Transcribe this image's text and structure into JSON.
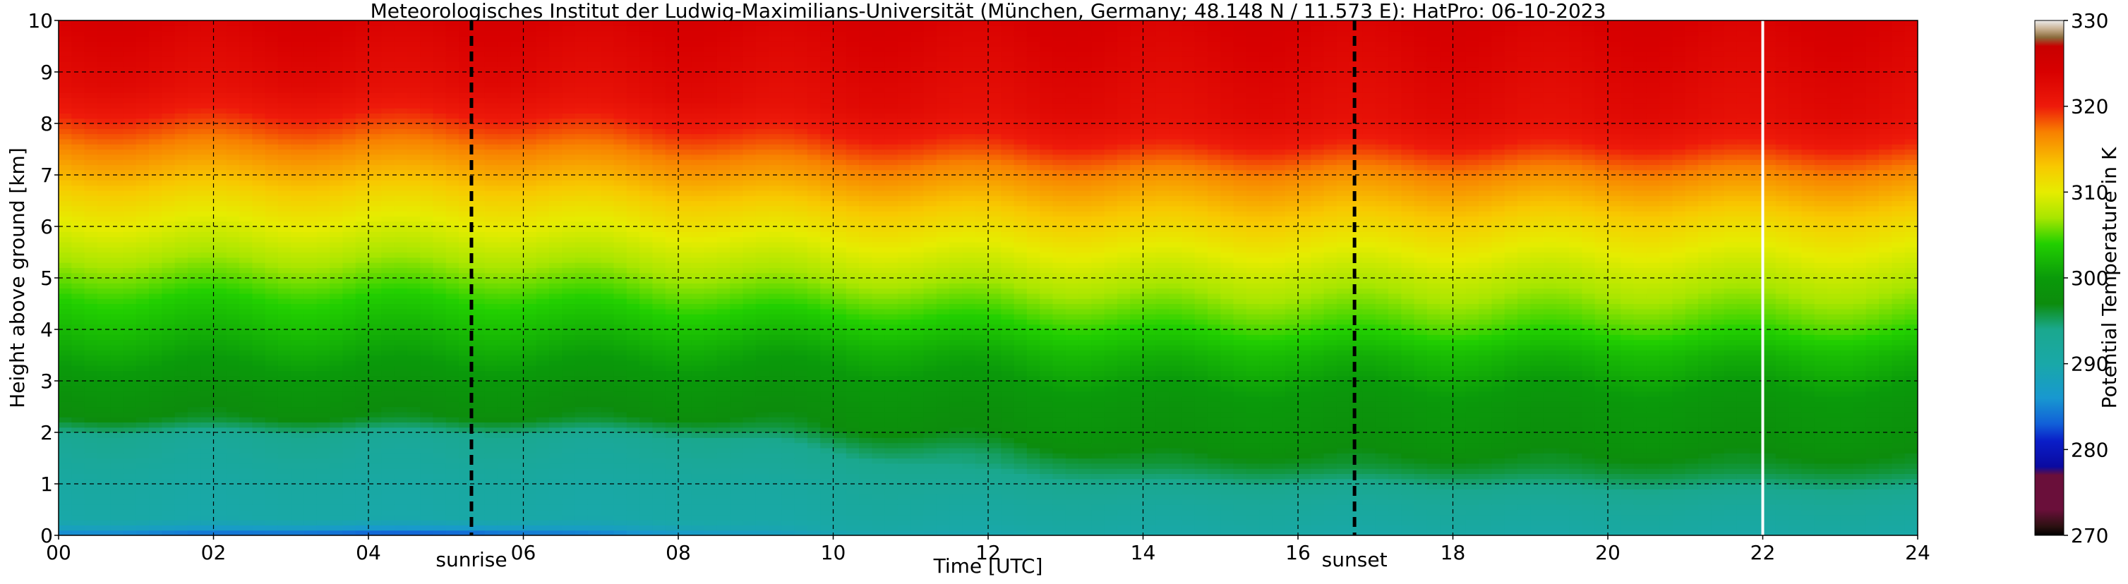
{
  "chart_data": {
    "type": "heatmap",
    "title": "Meteorologisches Institut der Ludwig-Maximilians-Universität (München, Germany; 48.148 N / 11.573 E):    HatPro: 06-10-2023",
    "xlabel": "Time [UTC]",
    "ylabel": "Height above ground [km]",
    "xlim": [
      0,
      24
    ],
    "ylim": [
      0,
      10
    ],
    "x_ticks": [
      {
        "value": 0,
        "label": "00"
      },
      {
        "value": 2,
        "label": "02"
      },
      {
        "value": 4,
        "label": "04"
      },
      {
        "value": 6,
        "label": "06"
      },
      {
        "value": 8,
        "label": "08"
      },
      {
        "value": 10,
        "label": "10"
      },
      {
        "value": 12,
        "label": "12"
      },
      {
        "value": 14,
        "label": "14"
      },
      {
        "value": 16,
        "label": "16"
      },
      {
        "value": 18,
        "label": "18"
      },
      {
        "value": 20,
        "label": "20"
      },
      {
        "value": 22,
        "label": "22"
      },
      {
        "value": 24,
        "label": "24"
      }
    ],
    "y_ticks": [
      {
        "value": 0,
        "label": "0"
      },
      {
        "value": 1,
        "label": "1"
      },
      {
        "value": 2,
        "label": "2"
      },
      {
        "value": 3,
        "label": "3"
      },
      {
        "value": 4,
        "label": "4"
      },
      {
        "value": 5,
        "label": "5"
      },
      {
        "value": 6,
        "label": "6"
      },
      {
        "value": 7,
        "label": "7"
      },
      {
        "value": 8,
        "label": "8"
      },
      {
        "value": 9,
        "label": "9"
      },
      {
        "value": 10,
        "label": "10"
      }
    ],
    "grid": true,
    "colorbar": {
      "label": "Potential Temperature in K",
      "range": [
        270,
        330
      ],
      "ticks": [
        {
          "value": 270,
          "label": "270"
        },
        {
          "value": 280,
          "label": "280"
        },
        {
          "value": 290,
          "label": "290"
        },
        {
          "value": 300,
          "label": "300"
        },
        {
          "value": 310,
          "label": "310"
        },
        {
          "value": 320,
          "label": "320"
        },
        {
          "value": 330,
          "label": "330"
        }
      ],
      "stops": [
        {
          "value": 270,
          "color": "#000000"
        },
        {
          "value": 271,
          "color": "#2a1010"
        },
        {
          "value": 273,
          "color": "#6a0f3a"
        },
        {
          "value": 277,
          "color": "#6a0f3a"
        },
        {
          "value": 278,
          "color": "#0a0aa0"
        },
        {
          "value": 281,
          "color": "#0a1ec8"
        },
        {
          "value": 283,
          "color": "#1160d8"
        },
        {
          "value": 286,
          "color": "#1898d0"
        },
        {
          "value": 290,
          "color": "#19a8a8"
        },
        {
          "value": 294,
          "color": "#1aa88e"
        },
        {
          "value": 297,
          "color": "#0c8c0c"
        },
        {
          "value": 300,
          "color": "#0a9a0a"
        },
        {
          "value": 304,
          "color": "#22d000"
        },
        {
          "value": 307,
          "color": "#a8e600"
        },
        {
          "value": 310,
          "color": "#e6ec00"
        },
        {
          "value": 313,
          "color": "#f8c800"
        },
        {
          "value": 317,
          "color": "#f88000"
        },
        {
          "value": 320,
          "color": "#ee1a0a"
        },
        {
          "value": 324,
          "color": "#d80000"
        },
        {
          "value": 327,
          "color": "#c80000"
        },
        {
          "value": 328,
          "color": "#8a6a3a"
        },
        {
          "value": 329,
          "color": "#c8b090"
        },
        {
          "value": 330,
          "color": "#ececec"
        }
      ]
    },
    "profiles": [
      {
        "time": 0,
        "heights": [
          0,
          0.08,
          0.3,
          1.0,
          1.9,
          2.3,
          2.7,
          3.6,
          4.6,
          5.6,
          6.6,
          7.4,
          8.2,
          8.7,
          10
        ],
        "theta": [
          283,
          287,
          290,
          291,
          293,
          297,
          298,
          301,
          304,
          308,
          312,
          316,
          320,
          322,
          324
        ]
      },
      {
        "time": 4,
        "heights": [
          0,
          0.12,
          0.3,
          1.0,
          1.9,
          2.3,
          2.7,
          3.6,
          4.6,
          5.6,
          6.6,
          7.4,
          8.2,
          8.7,
          10
        ],
        "theta": [
          282,
          286,
          290,
          291,
          293,
          297,
          298,
          301,
          304,
          308,
          312,
          316,
          320,
          322,
          324
        ]
      },
      {
        "time": 5.3,
        "heights": [
          0,
          0.12,
          0.3,
          1.0,
          1.9,
          2.3,
          2.7,
          3.6,
          4.6,
          5.6,
          6.6,
          7.4,
          8.2,
          8.7,
          10
        ],
        "theta": [
          282,
          286,
          290,
          291,
          293,
          297,
          298,
          301,
          304,
          308,
          312,
          316,
          320,
          322,
          324
        ]
      },
      {
        "time": 8,
        "heights": [
          0,
          0.08,
          0.3,
          1.0,
          1.85,
          2.3,
          2.7,
          3.6,
          4.4,
          5.4,
          6.4,
          7.2,
          8.0,
          8.5,
          10
        ],
        "theta": [
          284,
          288,
          290,
          291,
          293,
          297,
          298,
          301,
          304,
          308,
          312,
          316,
          320,
          322,
          324
        ]
      },
      {
        "time": 10,
        "heights": [
          0,
          0.1,
          0.4,
          1.0,
          1.6,
          2.1,
          2.6,
          3.6,
          4.3,
          5.2,
          6.2,
          7.0,
          7.8,
          8.3,
          10
        ],
        "theta": [
          288,
          290,
          291,
          292,
          294,
          297,
          298,
          301,
          304,
          308,
          312,
          316,
          320,
          322,
          324
        ]
      },
      {
        "time": 14,
        "heights": [
          0,
          0.2,
          0.6,
          1.0,
          1.35,
          1.8,
          2.5,
          3.5,
          4.2,
          5.0,
          6.0,
          6.9,
          7.6,
          8.1,
          10
        ],
        "theta": [
          290,
          291,
          292,
          294,
          296,
          298,
          299,
          302,
          305,
          308,
          312,
          316,
          320,
          322,
          324
        ]
      },
      {
        "time": 16.7,
        "heights": [
          0,
          0.2,
          0.6,
          1.0,
          1.3,
          1.8,
          2.5,
          3.5,
          4.1,
          5.0,
          6.0,
          6.9,
          7.6,
          8.1,
          10
        ],
        "theta": [
          290,
          291,
          292,
          294,
          296,
          298,
          299,
          302,
          305,
          308,
          312,
          316,
          320,
          322,
          324
        ]
      },
      {
        "time": 20,
        "heights": [
          0,
          0.15,
          0.5,
          0.9,
          1.25,
          1.8,
          2.5,
          3.5,
          4.1,
          5.0,
          6.1,
          6.9,
          7.6,
          8.1,
          10
        ],
        "theta": [
          290,
          291,
          292,
          294,
          296,
          298,
          299,
          302,
          305,
          308,
          312,
          316,
          320,
          322,
          324
        ]
      },
      {
        "time": 24,
        "heights": [
          0,
          0.15,
          0.5,
          0.9,
          1.25,
          1.8,
          2.5,
          3.5,
          4.1,
          5.0,
          6.1,
          6.9,
          7.6,
          8.1,
          10
        ],
        "theta": [
          290,
          291,
          292,
          294,
          296,
          298,
          299,
          302,
          305,
          308,
          312,
          316,
          320,
          322,
          324
        ]
      }
    ],
    "markers": [
      {
        "time": 5.33,
        "label": "sunrise",
        "style": "dashed",
        "color": "#000000"
      },
      {
        "time": 16.73,
        "label": "sunset",
        "style": "dashed",
        "color": "#000000"
      },
      {
        "time": 22.0,
        "label": "",
        "style": "solid",
        "color": "#ffffff"
      }
    ]
  }
}
